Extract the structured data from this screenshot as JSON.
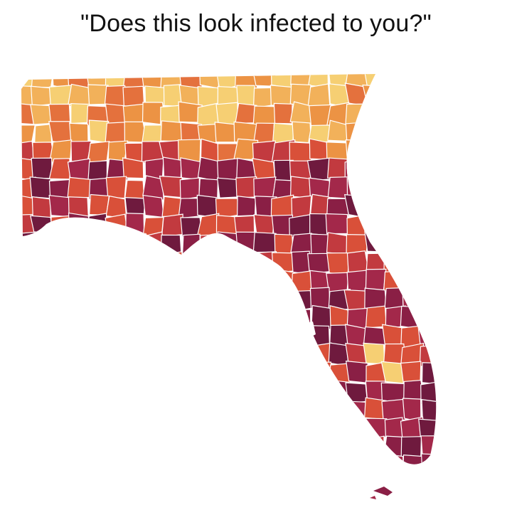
{
  "caption": "\"Does this look infected to you?\"",
  "map": {
    "subject": "Florida and south Georgia/Alabama counties choropleth",
    "palette": [
      "#f6cf73",
      "#f2b15a",
      "#ec9344",
      "#e4713d",
      "#d95039",
      "#c23a3f",
      "#a3284a",
      "#8a1f45",
      "#6f1a3e"
    ],
    "border_color": "#ffffff",
    "legend": "none"
  }
}
